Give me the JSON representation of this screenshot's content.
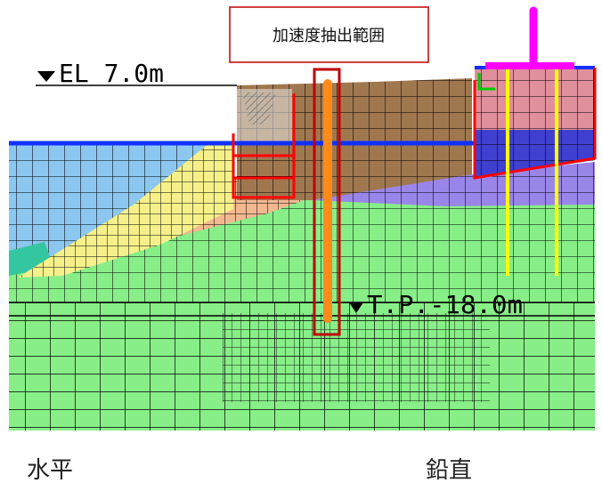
{
  "callout": {
    "text": "加速度抽出範囲"
  },
  "elevation_top": {
    "text": "EL 7.0m"
  },
  "elevation_bottom": {
    "text": "T.P.-18.0m"
  },
  "labels": {
    "horizontal": "水平",
    "vertical": "鉛直"
  },
  "colors": {
    "sea": "#8cc7f0",
    "water_line": "#1030ff",
    "embankment": "#a07850",
    "rubble": "#f5f08a",
    "sand": "#f2b890",
    "soft_clay": "#9a86e8",
    "foundation": "#88ee88",
    "teal_layer": "#33c6a0",
    "pier_top": "#e0909c",
    "pier_mid": "#4040d0",
    "pier_low": "#8a6ae8",
    "extraction_box": "#c00000",
    "extraction_line": "#ff8a1a",
    "piles": "#ffff00",
    "mast": "#ff00ff",
    "red_frame": "#ff0000"
  }
}
